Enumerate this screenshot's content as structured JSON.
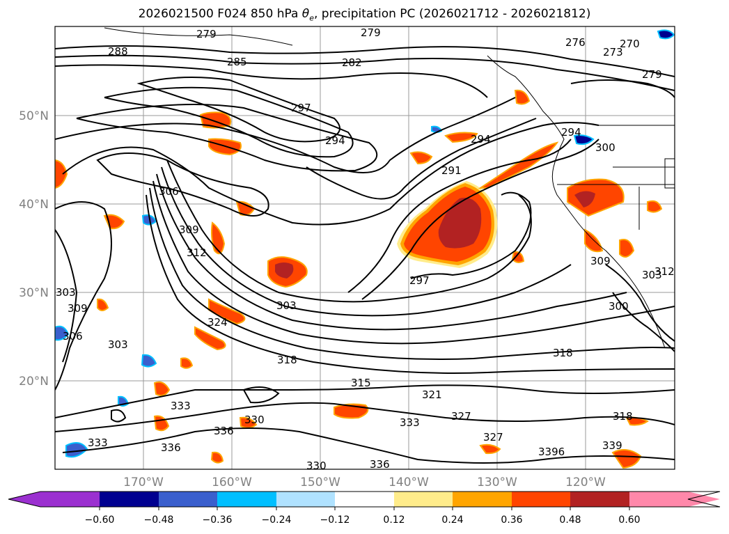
{
  "title": {
    "prefix": "2026021500 F024 850 hPa ",
    "symbol": "θ",
    "subscript": "e",
    "suffix": ", precipitation PC (2026021712 - 2026021812)"
  },
  "map": {
    "lon_ticks": [
      "170°W",
      "160°W",
      "150°W",
      "140°W",
      "130°W",
      "120°W"
    ],
    "lat_ticks": [
      "50°N",
      "40°N",
      "30°N",
      "20°N"
    ],
    "grid": true,
    "contour_labels": [
      "279",
      "279",
      "288",
      "285",
      "282",
      "276",
      "273",
      "270",
      "279",
      "297",
      "294",
      "294",
      "291",
      "294",
      "300",
      "303",
      "306",
      "309",
      "312",
      "297",
      "303",
      "309",
      "303",
      "300",
      "324",
      "309",
      "306",
      "303",
      "318",
      "315",
      "321",
      "327",
      "333",
      "318",
      "330",
      "333",
      "336",
      "336",
      "330",
      "336",
      "327",
      "3396",
      "318",
      "339",
      "312",
      "333"
    ]
  },
  "colorbar": {
    "tick_labels": [
      "−0.60",
      "−0.48",
      "−0.36",
      "−0.24",
      "−0.12",
      "0.12",
      "0.24",
      "0.36",
      "0.48",
      "0.60"
    ],
    "colors": [
      "#9b30d0",
      "#000090",
      "#3a5fcd",
      "#00bfff",
      "#b0e2ff",
      "#ffffff",
      "#ffec8b",
      "#ffa500",
      "#ff4500",
      "#b22222",
      "#ff88aa"
    ],
    "extend": "both"
  }
}
